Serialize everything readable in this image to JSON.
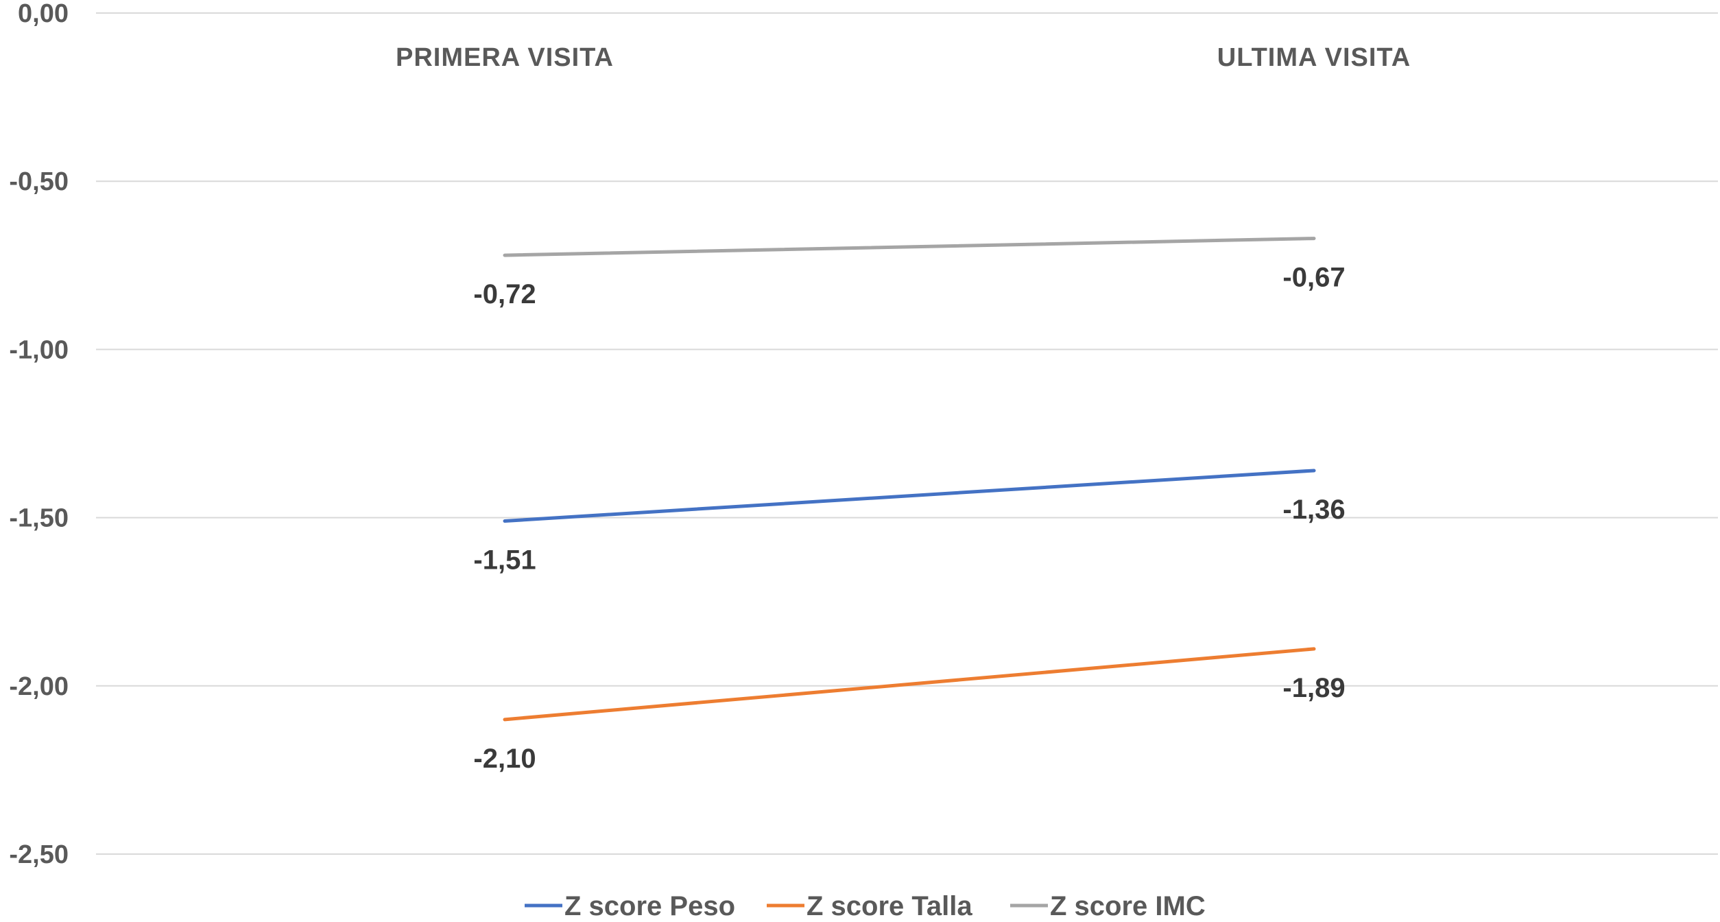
{
  "chart_data": {
    "type": "line",
    "categories": [
      "PRIMERA VISITA",
      "ULTIMA VISITA"
    ],
    "series": [
      {
        "name": "Z score Peso",
        "values": [
          -1.51,
          -1.36
        ],
        "labels": [
          "-1,51",
          "-1,36"
        ],
        "color": "#4472C4"
      },
      {
        "name": "Z score Talla",
        "values": [
          -2.1,
          -1.89
        ],
        "labels": [
          "-2,10",
          "-1,89"
        ],
        "color": "#ED7D31"
      },
      {
        "name": "Z score IMC",
        "values": [
          -0.72,
          -0.67
        ],
        "labels": [
          "-0,72",
          "-0,67"
        ],
        "color": "#A5A5A5"
      }
    ],
    "yticks": [
      {
        "value": 0,
        "label": "0,00"
      },
      {
        "value": -0.5,
        "label": "-0,50"
      },
      {
        "value": -1,
        "label": "-1,00"
      },
      {
        "value": -1.5,
        "label": "-1,50"
      },
      {
        "value": -2,
        "label": "-2,00"
      },
      {
        "value": -2.5,
        "label": "-2,50"
      }
    ],
    "ylim": [
      -2.5,
      0
    ],
    "grid": true,
    "legend_position": "bottom",
    "title": "",
    "xlabel": "",
    "ylabel": ""
  }
}
